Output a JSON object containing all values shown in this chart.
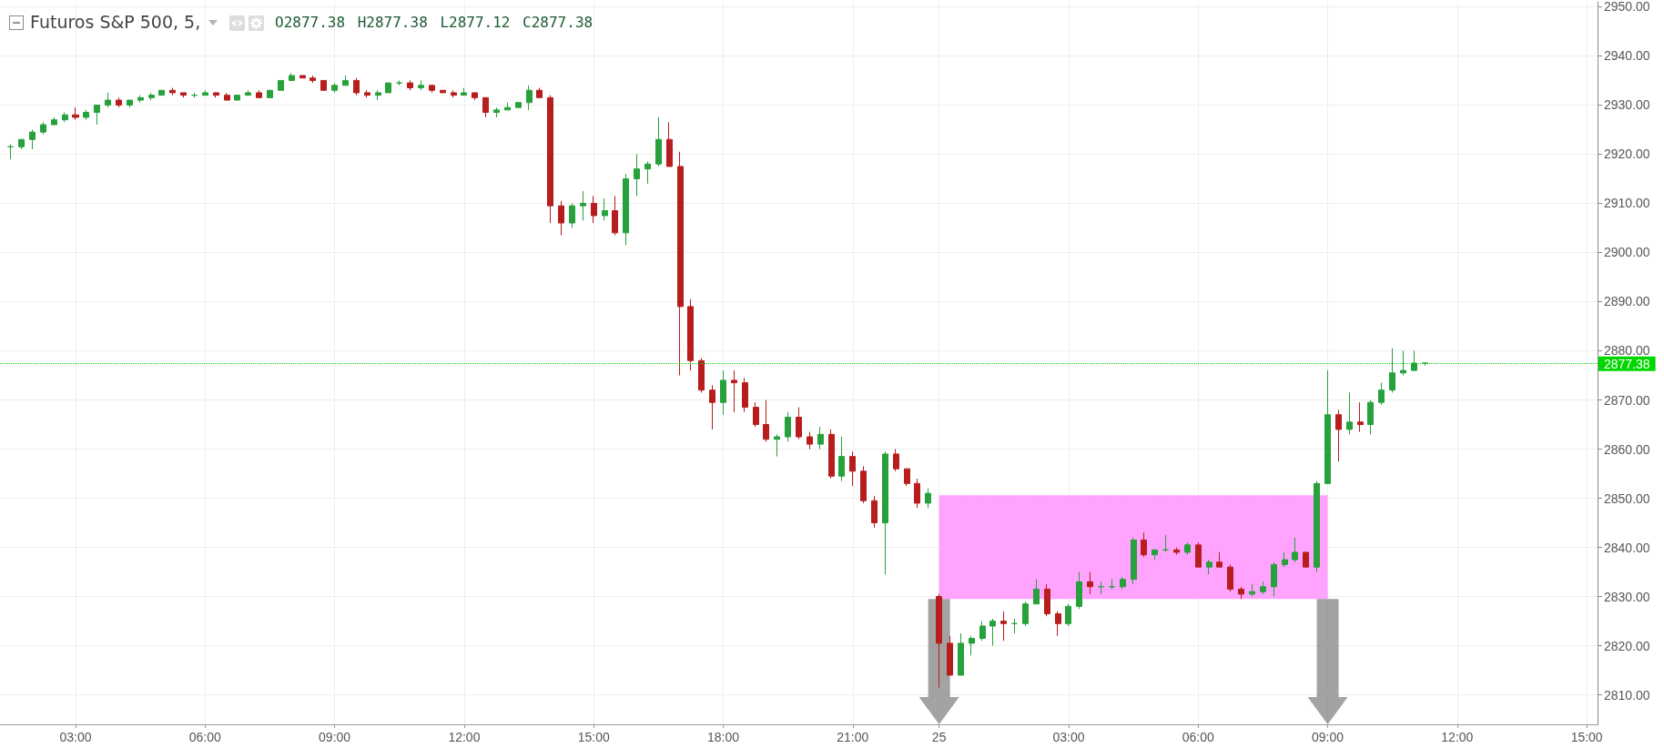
{
  "chart_data": {
    "type": "candlestick",
    "title": "Futuros S&P 500, 5,",
    "subtitle": "O2877.38 H2877.38 L2877.12 C2877.38",
    "categories": [
      null,
      null,
      null,
      null,
      null,
      null,
      null,
      "03:00",
      null,
      null,
      null,
      null,
      null,
      null,
      null,
      null,
      null,
      null,
      null,
      "06:00",
      null,
      null,
      null,
      null,
      null,
      null,
      null,
      null,
      null,
      null,
      null,
      "09:00",
      null,
      null,
      null,
      null,
      null,
      null,
      null,
      null,
      null,
      null,
      null,
      "12:00",
      null,
      null,
      null,
      null,
      null,
      null,
      null,
      null,
      null,
      null,
      null,
      "15:00",
      null,
      null,
      null,
      null,
      null,
      null,
      null,
      null,
      null,
      null,
      null,
      "18:00",
      null,
      null,
      null,
      null,
      null,
      null,
      null,
      null,
      null,
      null,
      null,
      "21:00",
      null,
      null,
      null,
      null,
      null,
      null,
      null,
      "25",
      null,
      null,
      null,
      null,
      null,
      null,
      null,
      null,
      null,
      null,
      null,
      "03:00",
      null,
      null,
      null,
      null,
      null,
      null,
      null,
      null,
      null,
      null,
      null,
      "06:00",
      null,
      null,
      null,
      null,
      null,
      null,
      null,
      null,
      null,
      null,
      null,
      "09:00",
      null,
      null,
      null,
      null,
      null,
      null,
      null,
      null,
      null,
      null,
      null,
      "12:00",
      null,
      null,
      null,
      null,
      null,
      null,
      null,
      null,
      null,
      null,
      null,
      "15:00",
      null
    ],
    "ohlc": [
      null,
      [
        2921.5,
        2922,
        2919,
        2921.5
      ],
      [
        2921.5,
        2923,
        2921,
        2923
      ],
      [
        2923,
        2925,
        2921,
        2924.5
      ],
      [
        2924.5,
        2926.5,
        2924,
        2926
      ],
      [
        2926,
        2927.5,
        2926,
        2927
      ],
      [
        2927,
        2928.5,
        2926.5,
        2928
      ],
      [
        2928,
        2929.5,
        2927,
        2927.5
      ],
      [
        2927.5,
        2929,
        2927,
        2928.5
      ],
      [
        2928.5,
        2930,
        2926,
        2930
      ],
      [
        2930,
        2932.5,
        2929.5,
        2931
      ],
      [
        2931,
        2931.5,
        2929.5,
        2930
      ],
      [
        2930,
        2931,
        2929.5,
        2931
      ],
      [
        2931,
        2932,
        2930.5,
        2931.5
      ],
      [
        2931.5,
        2932.5,
        2931,
        2932
      ],
      [
        2932,
        2933,
        2932,
        2933
      ],
      [
        2933,
        2933.5,
        2932,
        2932.5
      ],
      [
        2932.5,
        2932.5,
        2931.5,
        2932
      ],
      [
        2932,
        2932.5,
        2931.5,
        2932
      ],
      [
        2932,
        2933,
        2932,
        2932.5
      ],
      [
        2932.5,
        2932.5,
        2931.5,
        2932
      ],
      [
        2932,
        2932.5,
        2931,
        2931
      ],
      [
        2931,
        2932,
        2931,
        2932
      ],
      [
        2932,
        2933,
        2932,
        2932.5
      ],
      [
        2932.5,
        2933,
        2931.5,
        2931.5
      ],
      [
        2931.5,
        2933,
        2931.5,
        2933
      ],
      [
        2933,
        2935,
        2933,
        2935
      ],
      [
        2935,
        2936.5,
        2935,
        2936
      ],
      [
        2936,
        2936,
        2935.5,
        2935.5
      ],
      [
        2935.5,
        2936,
        2934.5,
        2935
      ],
      [
        2935,
        2935,
        2933,
        2933
      ],
      [
        2933,
        2934.5,
        2932.5,
        2934
      ],
      [
        2934,
        2936,
        2934,
        2935
      ],
      [
        2935,
        2935.5,
        2932,
        2932.5
      ],
      [
        2932.5,
        2933,
        2931.5,
        2932
      ],
      [
        2932,
        2933,
        2931,
        2932.5
      ],
      [
        2932.5,
        2934.5,
        2932.5,
        2934.5
      ],
      [
        2934.5,
        2935,
        2934,
        2934.5
      ],
      [
        2934.5,
        2935,
        2933,
        2933.5
      ],
      [
        2933.5,
        2935,
        2933,
        2934
      ],
      [
        2934,
        2934,
        2932.5,
        2933
      ],
      [
        2933,
        2933,
        2932.5,
        2932.5
      ],
      [
        2932.5,
        2933,
        2931.5,
        2932
      ],
      [
        2932,
        2933.5,
        2932,
        2932.5
      ],
      [
        2932.5,
        2932.5,
        2931,
        2931.5
      ],
      [
        2931.5,
        2931.5,
        2927.5,
        2928.5
      ],
      [
        2928.5,
        2929.5,
        2927.5,
        2929
      ],
      [
        2929,
        2930.5,
        2929,
        2929.5
      ],
      [
        2929.5,
        2930.5,
        2929.5,
        2930.5
      ],
      [
        2930.5,
        2934,
        2929,
        2933
      ],
      [
        2933,
        2933.5,
        2931.5,
        2931.5
      ],
      [
        2931.5,
        2932,
        2906,
        2909.5
      ],
      [
        2909.5,
        2910.5,
        2903.5,
        2906
      ],
      [
        2906,
        2910,
        2905,
        2909.5
      ],
      [
        2909.5,
        2912.5,
        2906.5,
        2910
      ],
      [
        2910,
        2911.5,
        2906,
        2907.5
      ],
      [
        2907.5,
        2911,
        2906.5,
        2908.5
      ],
      [
        2908.5,
        2911.5,
        2903.5,
        2904
      ],
      [
        2904,
        2916,
        2901.5,
        2915
      ],
      [
        2915,
        2920,
        2911.5,
        2917
      ],
      [
        2917,
        2918.5,
        2914,
        2918
      ],
      [
        2918,
        2927.5,
        2917.5,
        2923
      ],
      [
        2923,
        2926.5,
        2917.5,
        2917.5
      ],
      [
        2917.5,
        2920.5,
        2875,
        2889
      ],
      [
        2889,
        2890.5,
        2876,
        2878
      ],
      [
        2878,
        2878.5,
        2871.5,
        2872
      ],
      [
        2872,
        2873,
        2864,
        2869.5
      ],
      [
        2869.5,
        2876,
        2867,
        2874
      ],
      [
        2874,
        2876,
        2867.5,
        2873.5
      ],
      [
        2873.5,
        2874.5,
        2867.5,
        2868.5
      ],
      [
        2868.5,
        2869.5,
        2864.5,
        2865
      ],
      [
        2865,
        2870,
        2861.5,
        2862
      ],
      [
        2862,
        2863,
        2858.5,
        2862.5
      ],
      [
        2862.5,
        2867.5,
        2861.5,
        2866.5
      ],
      [
        2866.5,
        2868.5,
        2862,
        2862.5
      ],
      [
        2862.5,
        2863.5,
        2860,
        2861
      ],
      [
        2861,
        2864.5,
        2860,
        2863
      ],
      [
        2863,
        2864,
        2854,
        2854.5
      ],
      [
        2854.5,
        2862.5,
        2853.5,
        2858.5
      ],
      [
        2858.5,
        2859.5,
        2852.5,
        2855.5
      ],
      [
        2855.5,
        2856.5,
        2849,
        2849.5
      ],
      [
        2849.5,
        2850.5,
        2844,
        2845
      ],
      [
        2845,
        2859.5,
        2834.5,
        2859
      ],
      [
        2859,
        2860,
        2855.5,
        2856
      ],
      [
        2856,
        2856,
        2852.5,
        2853
      ],
      [
        2853,
        2854,
        2848,
        2849
      ],
      [
        2849,
        2852,
        2848,
        2851
      ],
      [
        2830,
        2830.5,
        2811.5,
        2820.5
      ],
      [
        2820.5,
        2822,
        2814,
        2814
      ],
      [
        2814,
        2822.5,
        2814,
        2820.5
      ],
      [
        2820.5,
        2822,
        2818,
        2821.5
      ],
      [
        2821.5,
        2825,
        2821,
        2824
      ],
      [
        2824,
        2825.5,
        2820,
        2825
      ],
      [
        2825,
        2827,
        2821,
        2824.5
      ],
      [
        2824.5,
        2825.5,
        2822.5,
        2824.5
      ],
      [
        2824.5,
        2829,
        2824,
        2828.5
      ],
      [
        2828.5,
        2833.5,
        2828.5,
        2831.5
      ],
      [
        2831.5,
        2832.5,
        2826,
        2826.5
      ],
      [
        2826.5,
        2827,
        2822,
        2824.5
      ],
      [
        2824.5,
        2828.5,
        2824,
        2828
      ],
      [
        2828,
        2835,
        2827.5,
        2833
      ],
      [
        2833,
        2835,
        2830.5,
        2832
      ],
      [
        2832,
        2833,
        2830.5,
        2832
      ],
      [
        2832,
        2833.5,
        2831.5,
        2832
      ],
      [
        2832,
        2834,
        2831.5,
        2833.5
      ],
      [
        2833.5,
        2842,
        2832.5,
        2841.5
      ],
      [
        2841.5,
        2843,
        2838,
        2838.5
      ],
      [
        2838.5,
        2839.5,
        2837.5,
        2839.5
      ],
      [
        2839.5,
        2842.5,
        2839,
        2839.5
      ],
      [
        2839.5,
        2840,
        2838.5,
        2839
      ],
      [
        2839,
        2841,
        2838.5,
        2840.5
      ],
      [
        2840.5,
        2841,
        2836,
        2836
      ],
      [
        2836,
        2837.5,
        2834.5,
        2837
      ],
      [
        2837,
        2839,
        2836,
        2836
      ],
      [
        2836,
        2836.5,
        2831,
        2831.5
      ],
      [
        2831.5,
        2832,
        2829.5,
        2830.5
      ],
      [
        2830.5,
        2832.5,
        2830,
        2831
      ],
      [
        2831,
        2833,
        2830.5,
        2832
      ],
      [
        2832,
        2837,
        2830,
        2836.5
      ],
      [
        2836.5,
        2839,
        2836,
        2837.5
      ],
      [
        2837.5,
        2842,
        2837,
        2839
      ],
      [
        2839,
        2839,
        2836,
        2836
      ],
      [
        2836,
        2853.5,
        2835,
        2853
      ],
      [
        2853,
        2876,
        2853,
        2867
      ],
      [
        2867,
        2868,
        2857.5,
        2864
      ],
      [
        2864,
        2871.5,
        2863,
        2865.5
      ],
      [
        2865.5,
        2869.5,
        2863.5,
        2865
      ],
      [
        2865,
        2870,
        2863,
        2869.5
      ],
      [
        2869.5,
        2873.5,
        2869,
        2872
      ],
      [
        2872,
        2880.5,
        2871.5,
        2875.5
      ],
      [
        2875.5,
        2880,
        2875,
        2876
      ],
      [
        2876,
        2880,
        2876,
        2877.5
      ],
      [
        2877.5,
        2877.5,
        2877,
        2877.5
      ],
      null,
      null,
      null,
      null,
      null,
      null,
      null,
      null,
      null,
      null,
      null,
      null,
      null,
      null,
      null,
      null
    ],
    "colors": [
      null,
      "#26a13b",
      "#26a13b",
      "#26a13b",
      "#26a13b",
      "#26a13b",
      "#26a13b",
      "#b81d1d",
      "#26a13b",
      "#26a13b",
      "#26a13b",
      "#b81d1d",
      "#26a13b",
      "#26a13b",
      "#26a13b",
      "#26a13b",
      "#b81d1d",
      "#b81d1d",
      "#26a13b",
      "#26a13b",
      "#b81d1d",
      "#b81d1d",
      "#26a13b",
      "#26a13b",
      "#b81d1d",
      "#26a13b",
      "#26a13b",
      "#26a13b",
      "#b81d1d",
      "#b81d1d",
      "#b81d1d",
      "#26a13b",
      "#26a13b",
      "#b81d1d",
      "#b81d1d",
      "#26a13b",
      "#26a13b",
      "#26a13b",
      "#b81d1d",
      "#26a13b",
      "#b81d1d",
      "#b81d1d",
      "#b81d1d",
      "#26a13b",
      "#b81d1d",
      "#b81d1d",
      "#26a13b",
      "#26a13b",
      "#26a13b",
      "#26a13b",
      "#b81d1d",
      "#b81d1d",
      "#b81d1d",
      "#26a13b",
      "#26a13b",
      "#b81d1d",
      "#26a13b",
      "#b81d1d",
      "#26a13b",
      "#26a13b",
      "#26a13b",
      "#26a13b",
      "#b81d1d",
      "#b81d1d",
      "#b81d1d",
      "#b81d1d",
      "#b81d1d",
      "#26a13b",
      "#b81d1d",
      "#b81d1d",
      "#b81d1d",
      "#b81d1d",
      "#26a13b",
      "#26a13b",
      "#b81d1d",
      "#b81d1d",
      "#26a13b",
      "#b81d1d",
      "#26a13b",
      "#b81d1d",
      "#b81d1d",
      "#b81d1d",
      "#26a13b",
      "#b81d1d",
      "#b81d1d",
      "#b81d1d",
      "#26a13b",
      "#b81d1d",
      "#b81d1d",
      "#26a13b",
      "#26a13b",
      "#26a13b",
      "#26a13b",
      "#b81d1d",
      "#26a13b",
      "#26a13b",
      "#26a13b",
      "#b81d1d",
      "#b81d1d",
      "#26a13b",
      "#26a13b",
      "#b81d1d",
      "#26a13b",
      "#26a13b",
      "#26a13b",
      "#26a13b",
      "#b81d1d",
      "#26a13b",
      "#26a13b",
      "#b81d1d",
      "#26a13b",
      "#b81d1d",
      "#26a13b",
      "#b81d1d",
      "#b81d1d",
      "#b81d1d",
      "#26a13b",
      "#26a13b",
      "#26a13b",
      "#26a13b",
      "#26a13b",
      "#b81d1d",
      "#26a13b",
      "#26a13b",
      "#b81d1d",
      "#26a13b",
      "#b81d1d",
      "#26a13b",
      "#26a13b",
      "#26a13b",
      "#26a13b",
      "#26a13b",
      "#26a13b",
      null,
      null,
      null,
      null,
      null,
      null,
      null,
      null,
      null,
      null,
      null,
      null,
      null,
      null,
      null,
      null
    ],
    "series": [
      {
        "type": "line",
        "color": "#ffa3ff",
        "values": [
          null,
          null,
          null,
          null,
          null,
          null,
          null,
          null,
          null,
          null,
          null,
          null,
          null,
          null,
          null,
          null,
          null,
          null,
          null,
          null,
          null,
          null,
          null,
          null,
          null,
          null,
          null,
          null,
          null,
          null,
          null,
          null,
          null,
          null,
          null,
          null,
          null,
          null,
          null,
          null,
          null,
          null,
          null,
          null,
          null,
          null,
          null,
          null,
          null,
          null,
          null,
          null,
          null,
          null,
          null,
          null,
          null,
          null,
          null,
          null,
          null,
          null,
          null,
          null,
          null,
          null,
          null,
          null,
          null,
          null,
          null,
          null,
          null,
          null,
          null,
          null,
          null,
          null,
          null,
          null,
          null,
          null,
          null,
          null,
          null,
          null,
          null,
          2850.5,
          2850.5,
          2850.5,
          2850.5,
          2850.5,
          2850.5,
          2850.5,
          2850.5,
          2850.5,
          2850.5,
          2850.5,
          2850.5,
          2850.5,
          2850.5,
          2850.5,
          2850.5,
          2850.5,
          2850.5,
          2850.5,
          2850.5,
          2850.5,
          2850.5,
          2850.5,
          2850.5,
          2850.5,
          2850.5,
          2850.5,
          2850.5,
          2850.5,
          2850.5,
          2850.5,
          2850.5,
          2850.5,
          2850.5,
          2850.5,
          2850.5,
          2850.5,
          null,
          null,
          null,
          null,
          null,
          null,
          null,
          null,
          null,
          null,
          null,
          null,
          null,
          null,
          null,
          null,
          null,
          null,
          null,
          null,
          null,
          null,
          null,
          null,
          null
        ],
        "lower": [
          null,
          null,
          null,
          null,
          null,
          null,
          null,
          null,
          null,
          null,
          null,
          null,
          null,
          null,
          null,
          null,
          null,
          null,
          null,
          null,
          null,
          null,
          null,
          null,
          null,
          null,
          null,
          null,
          null,
          null,
          null,
          null,
          null,
          null,
          null,
          null,
          null,
          null,
          null,
          null,
          null,
          null,
          null,
          null,
          null,
          null,
          null,
          null,
          null,
          null,
          null,
          null,
          null,
          null,
          null,
          null,
          null,
          null,
          null,
          null,
          null,
          null,
          null,
          null,
          null,
          null,
          null,
          null,
          null,
          null,
          null,
          null,
          null,
          null,
          null,
          null,
          null,
          null,
          null,
          null,
          null,
          null,
          null,
          null,
          null,
          null,
          null,
          2829.5,
          2829.5,
          2829.5,
          2829.5,
          2829.5,
          2829.5,
          2829.5,
          2829.5,
          2829.5,
          2829.5,
          2829.5,
          2829.5,
          2829.5,
          2829.5,
          2829.5,
          2829.5,
          2829.5,
          2829.5,
          2829.5,
          2829.5,
          2829.5,
          2829.5,
          2829.5,
          2829.5,
          2829.5,
          2829.5,
          2829.5,
          2829.5,
          2829.5,
          2829.5,
          2829.5,
          2829.5,
          2829.5,
          2829.5,
          2829.5,
          2829.5,
          2829.5,
          null,
          null,
          null,
          null,
          null,
          null,
          null,
          null,
          null,
          null,
          null,
          null,
          null,
          null,
          null,
          null,
          null,
          null,
          null,
          null,
          null,
          null,
          null,
          null,
          null
        ],
        "upper": [
          null,
          null,
          null,
          null,
          null,
          null,
          null,
          null,
          null,
          null,
          null,
          null,
          null,
          null,
          null,
          null,
          null,
          null,
          null,
          null,
          null,
          null,
          null,
          null,
          null,
          null,
          null,
          null,
          null,
          null,
          null,
          null,
          null,
          null,
          null,
          null,
          null,
          null,
          null,
          null,
          null,
          null,
          null,
          null,
          null,
          null,
          null,
          null,
          null,
          null,
          null,
          null,
          null,
          null,
          null,
          null,
          null,
          null,
          null,
          null,
          null,
          null,
          null,
          null,
          null,
          null,
          null,
          null,
          null,
          null,
          null,
          null,
          null,
          null,
          null,
          null,
          null,
          null,
          null,
          null,
          null,
          null,
          null,
          null,
          null,
          null,
          null,
          2850.5,
          2850.5,
          2850.5,
          2850.5,
          2850.5,
          2850.5,
          2850.5,
          2850.5,
          2850.5,
          2850.5,
          2850.5,
          2850.5,
          2850.5,
          2850.5,
          2850.5,
          2850.5,
          2850.5,
          2850.5,
          2850.5,
          2850.5,
          2850.5,
          2850.5,
          2850.5,
          2850.5,
          2850.5,
          2850.5,
          2850.5,
          2850.5,
          2850.5,
          2850.5,
          2850.5,
          2850.5,
          2850.5,
          2850.5,
          2850.5,
          2850.5,
          2850.5,
          null,
          null,
          null,
          null,
          null,
          null,
          null,
          null,
          null,
          null,
          null,
          null,
          null,
          null,
          null,
          null,
          null,
          null,
          null,
          null,
          null,
          null,
          null,
          null,
          null
        ]
      }
    ],
    "ylim": [
      2804,
      2951
    ],
    "yticks": [
      {
        "value": 2810,
        "label": "2810.00"
      },
      {
        "value": 2820,
        "label": "2820.00"
      },
      {
        "value": 2830,
        "label": "2830.00"
      },
      {
        "value": 2840,
        "label": "2840.00"
      },
      {
        "value": 2850,
        "label": "2850.00"
      },
      {
        "value": 2860,
        "label": "2860.00"
      },
      {
        "value": 2870,
        "label": "2870.00"
      },
      {
        "value": 2880,
        "label": "2880.00"
      },
      {
        "value": 2890,
        "label": "2890.00"
      },
      {
        "value": 2900,
        "label": "2900.00"
      },
      {
        "value": 2910,
        "label": "2910.00"
      },
      {
        "value": 2920,
        "label": "2920.00"
      },
      {
        "value": 2930,
        "label": "2930.00"
      },
      {
        "value": 2940,
        "label": "2940.00"
      },
      {
        "value": 2950,
        "label": "2950.00"
      }
    ],
    "grid": true,
    "ref_lines": [
      {
        "axis": "y",
        "value": 2877.38,
        "label": "2877.38",
        "color": "#00d600",
        "line_style": "dotted"
      }
    ]
  }
}
